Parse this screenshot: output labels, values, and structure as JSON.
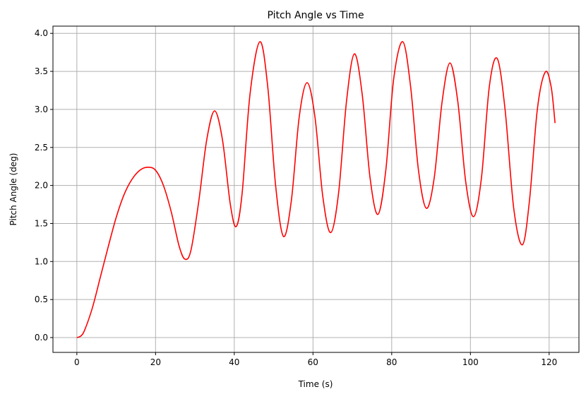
{
  "chart_data": {
    "type": "line",
    "title": "Pitch Angle vs Time",
    "x_label": "Time (s)",
    "y_label": "Pitch Angle (deg)",
    "x": [
      0,
      1,
      2,
      4,
      6,
      8,
      10,
      12,
      14,
      16,
      18,
      20,
      22,
      24,
      26,
      27.5,
      29,
      31,
      33,
      35,
      37,
      39,
      40.5,
      42,
      44,
      46.5,
      48.5,
      50.5,
      52.5,
      54.5,
      56.5,
      58.5,
      60.5,
      62.5,
      64.5,
      66.5,
      68.5,
      70.5,
      72.5,
      74.5,
      76.5,
      78.5,
      80.5,
      82.8,
      84.8,
      86.8,
      88.8,
      90.8,
      92.8,
      94.8,
      96.8,
      98.8,
      100.8,
      102.8,
      104.8,
      106.8,
      108.8,
      111,
      113.2,
      115,
      117,
      119,
      120.5,
      121.5
    ],
    "series": [
      {
        "name": "Pitch Angle",
        "color": "#ff0000",
        "values": [
          0,
          0.02,
          0.1,
          0.4,
          0.8,
          1.2,
          1.58,
          1.88,
          2.08,
          2.2,
          2.24,
          2.2,
          2.0,
          1.65,
          1.2,
          1.03,
          1.15,
          1.8,
          2.6,
          2.98,
          2.6,
          1.75,
          1.46,
          1.9,
          3.2,
          3.89,
          3.3,
          2.0,
          1.33,
          1.8,
          2.9,
          3.35,
          2.9,
          1.85,
          1.38,
          1.9,
          3.1,
          3.73,
          3.2,
          2.1,
          1.62,
          2.2,
          3.4,
          3.89,
          3.3,
          2.2,
          1.7,
          2.1,
          3.1,
          3.61,
          3.1,
          2.05,
          1.59,
          2.1,
          3.3,
          3.67,
          3.0,
          1.7,
          1.22,
          1.8,
          3.0,
          3.49,
          3.3,
          2.82
        ]
      }
    ],
    "xlim": [
      -6.07,
      127.57
    ],
    "ylim": [
      -0.195,
      4.095
    ],
    "xticks": [
      0,
      20,
      40,
      60,
      80,
      100,
      120
    ],
    "yticks": [
      {
        "value": 0,
        "label": "0.0"
      },
      0.5,
      {
        "value": 1,
        "label": "1.0"
      },
      1.5,
      {
        "value": 2,
        "label": "2.0"
      },
      2.5,
      {
        "value": 3,
        "label": "3.0"
      },
      3.5,
      {
        "value": 4,
        "label": "4.0"
      }
    ],
    "grid": true
  }
}
